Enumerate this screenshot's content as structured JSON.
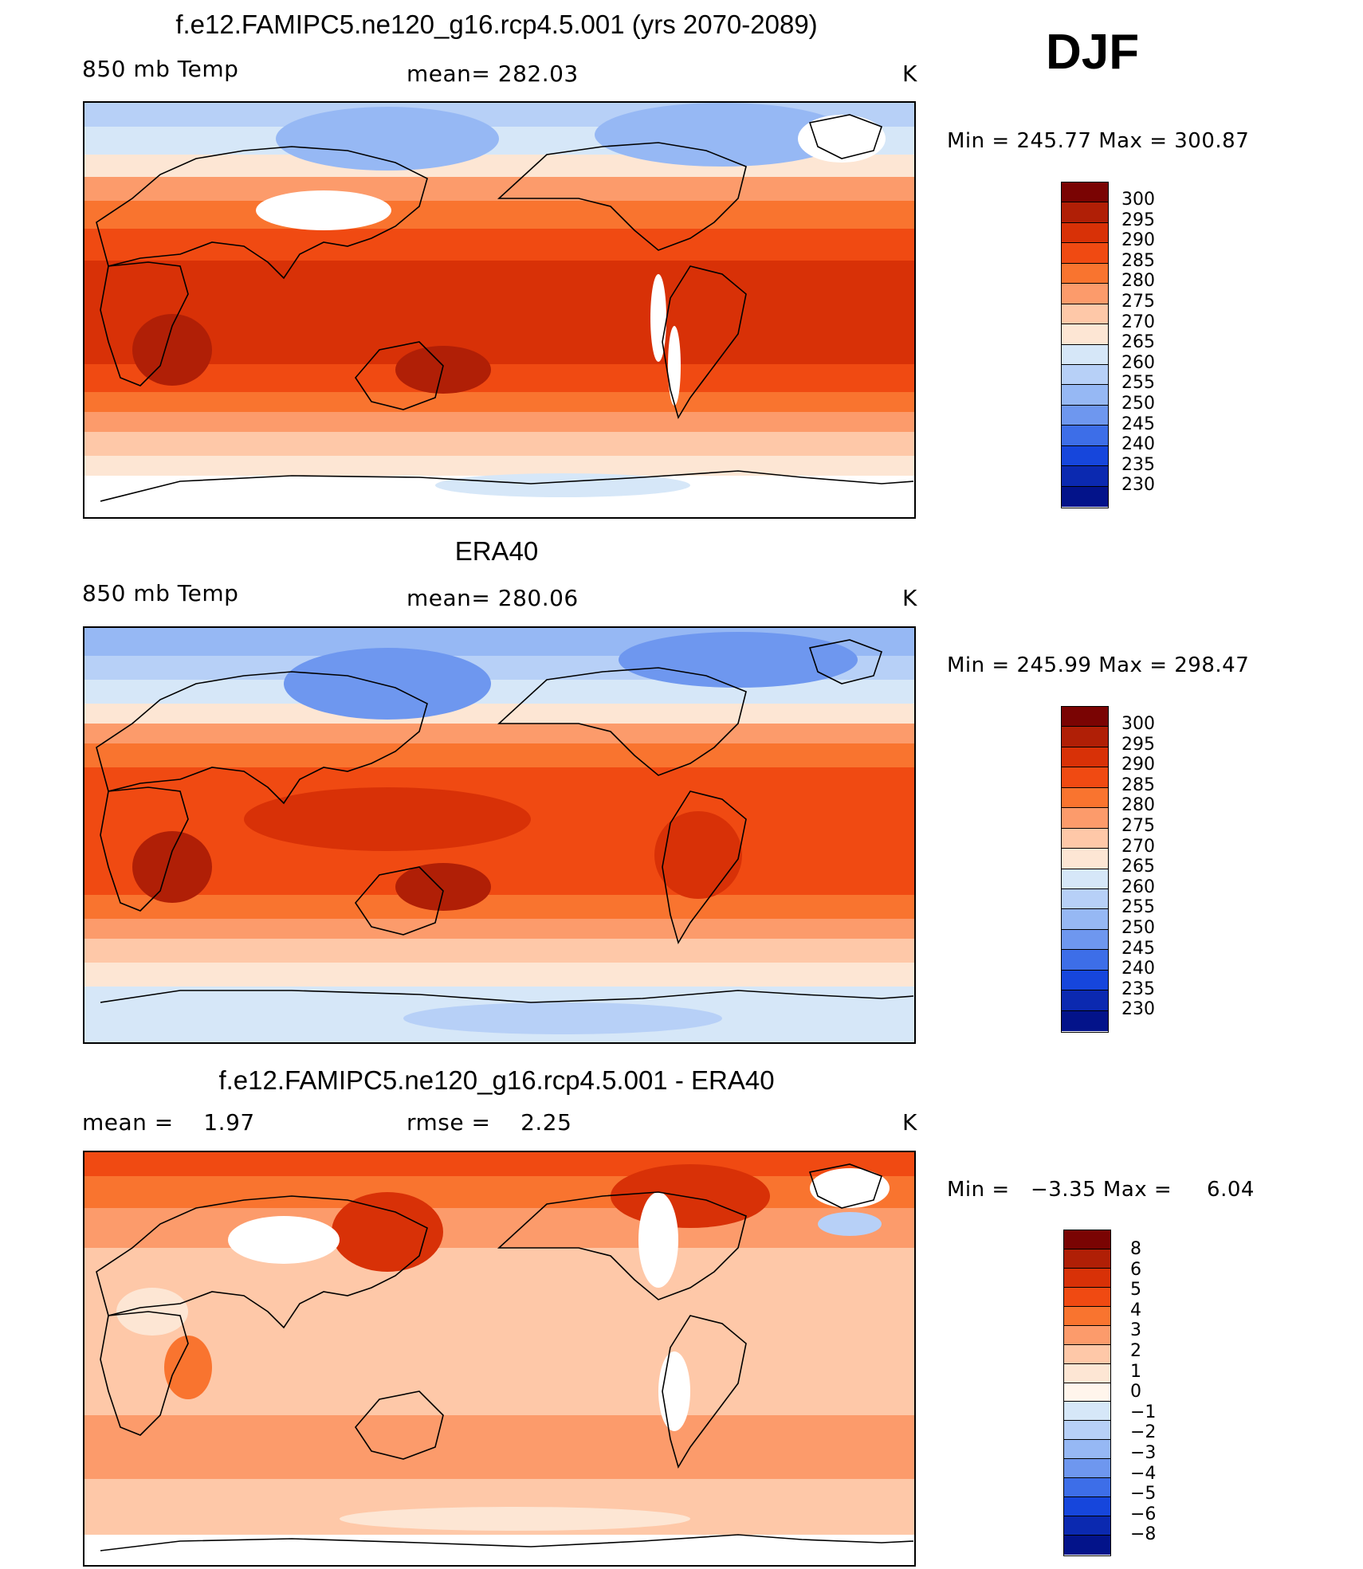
{
  "season": "DJF",
  "panels": [
    {
      "id": "model",
      "title": "f.e12.FAMIPC5.ne120_g16.rcp4.5.001 (yrs 2070-2089)",
      "left_label": "850 mb Temp",
      "center_label": "mean= 282.03",
      "units": "K",
      "minmax": "Min = 245.77 Max = 300.87",
      "colorbar_ticks": [
        "300",
        "295",
        "290",
        "285",
        "280",
        "275",
        "270",
        "265",
        "260",
        "255",
        "250",
        "245",
        "240",
        "235",
        "230"
      ]
    },
    {
      "id": "obs",
      "title": "ERA40",
      "left_label": "850 mb Temp",
      "center_label": "mean= 280.06",
      "units": "K",
      "minmax": "Min = 245.99 Max = 298.47",
      "colorbar_ticks": [
        "300",
        "295",
        "290",
        "285",
        "280",
        "275",
        "270",
        "265",
        "260",
        "255",
        "250",
        "245",
        "240",
        "235",
        "230"
      ]
    },
    {
      "id": "diff",
      "title": "f.e12.FAMIPC5.ne120_g16.rcp4.5.001 - ERA40",
      "left_label": "mean =    1.97",
      "center_label": "rmse =    2.25",
      "units": "K",
      "minmax": "Min =   −3.35 Max =     6.04",
      "colorbar_ticks": [
        "8",
        "6",
        "5",
        "4",
        "3",
        "2",
        "1",
        "0",
        "−1",
        "−2",
        "−3",
        "−4",
        "−5",
        "−6",
        "−8"
      ]
    }
  ],
  "colors": {
    "abs_colorbar": [
      "#7a0403",
      "#b01f06",
      "#d83107",
      "#f04a12",
      "#f9742f",
      "#fc9b6b",
      "#fec8a8",
      "#fde6d4",
      "#d6e7f8",
      "#b7d0f7",
      "#96b8f4",
      "#6e97ef",
      "#3d6ee8",
      "#1646dc",
      "#0b29b0",
      "#03138a"
    ],
    "diff_colorbar": [
      "#7a0403",
      "#b01f06",
      "#d83107",
      "#f04a12",
      "#f9742f",
      "#fc9b6b",
      "#fec8a8",
      "#fde6d4",
      "#fff5ec",
      "#d6e7f8",
      "#b7d0f7",
      "#96b8f4",
      "#6e97ef",
      "#3d6ee8",
      "#1646dc",
      "#0b29b0",
      "#03138a"
    ],
    "land_outline": "#000000",
    "missing_data": "#ffffff"
  }
}
